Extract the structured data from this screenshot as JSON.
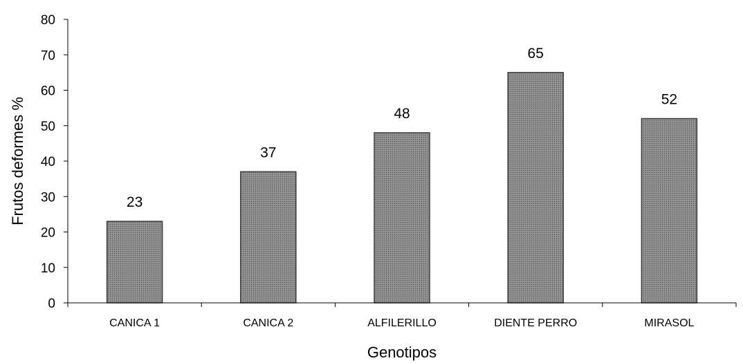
{
  "chart_data": {
    "type": "bar",
    "title": "",
    "xlabel": "Genotipos",
    "ylabel": "Frutos deformes %",
    "ylim": [
      0,
      80
    ],
    "yticks": [
      0,
      10,
      20,
      30,
      40,
      50,
      60,
      70,
      80
    ],
    "grid": false,
    "legend": "none",
    "categories": [
      "CANICA 1",
      "CANICA 2",
      "ALFILERILLO",
      "DIENTE PERRO",
      "MIRASOL"
    ],
    "values": [
      23,
      37,
      48,
      65,
      52
    ],
    "data_labels": [
      "23",
      "37",
      "48",
      "65",
      "52"
    ],
    "bar_color": "#8a8a8a",
    "bar_outline_color": "#3a3a3a",
    "bar_pattern": "dotted"
  }
}
